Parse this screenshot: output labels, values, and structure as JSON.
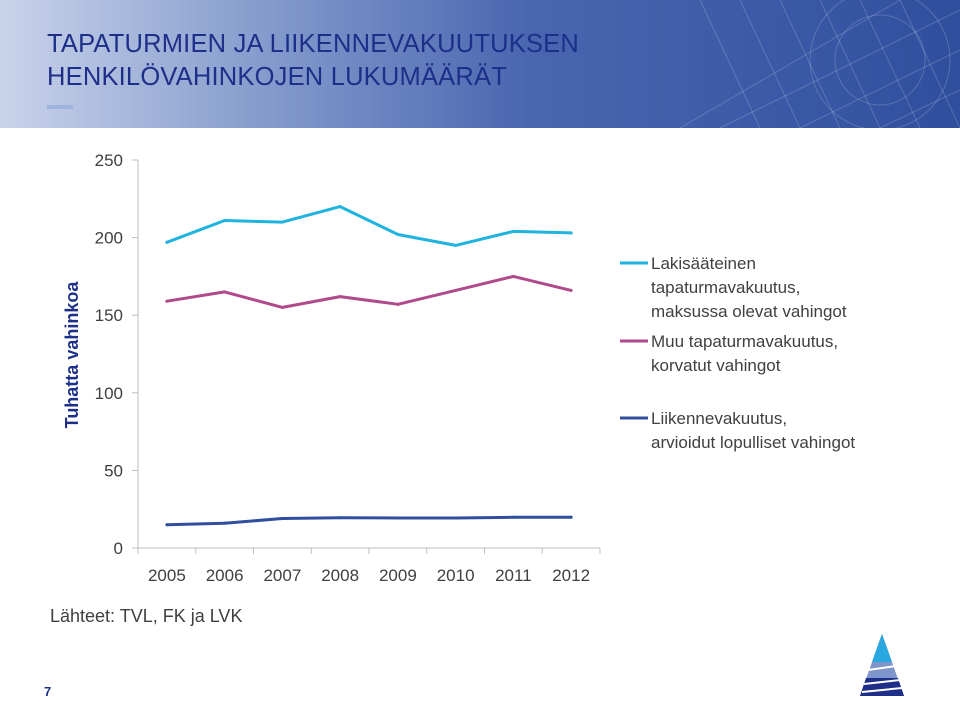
{
  "slide": {
    "title_line1": "TAPATURMIEN JA LIIKENNEVAKUUTUKSEN",
    "title_line2": "HENKILÖVAHINKOJEN LUKUMÄÄRÄT",
    "source": "Lähteet: TVL, FK ja LVK",
    "page_number": "7",
    "logo_icon": "stylized-blue-triangle-logo-icon",
    "colors": {
      "title": "#1d2f88",
      "header_blue": "#2f4f9e"
    }
  },
  "chart_data": {
    "type": "line",
    "title": "",
    "ylabel": "Tuhatta vahinkoa",
    "xlabel": "",
    "categories": [
      "2005",
      "2006",
      "2007",
      "2008",
      "2009",
      "2010",
      "2011",
      "2012"
    ],
    "ylim": [
      0,
      250
    ],
    "yticks": [
      0,
      50,
      100,
      150,
      200,
      250
    ],
    "ytick_labels": [
      "0",
      "50",
      "100",
      "150",
      "200",
      "250"
    ],
    "grid": false,
    "legend_position": "right",
    "series": [
      {
        "name": "Lakisääteinen tapaturmavakuutus, maksussa olevat vahingot",
        "legend_lines": [
          "Lakisääteinen",
          "tapaturmavakuutus,",
          "maksussa olevat vahingot"
        ],
        "color": "#1fb3e0",
        "values": [
          197,
          211,
          210,
          220,
          202,
          195,
          204,
          203
        ]
      },
      {
        "name": "Muu tapaturmavakuutus, korvatut vahingot",
        "legend_lines": [
          "Muu tapaturmavakuutus,",
          "korvatut vahingot"
        ],
        "color": "#b04a8b",
        "values": [
          159,
          165,
          155,
          162,
          157,
          166,
          175,
          166
        ]
      },
      {
        "name": "Liikennevakuutus, arvioidut lopulliset vahingot",
        "legend_lines": [
          "Liikennevakuutus,",
          "arvioidut lopulliset vahingot"
        ],
        "color": "#2f4f9e",
        "values": [
          15,
          16,
          19,
          19.5,
          19.3,
          19.3,
          19.8,
          19.8
        ]
      }
    ]
  }
}
